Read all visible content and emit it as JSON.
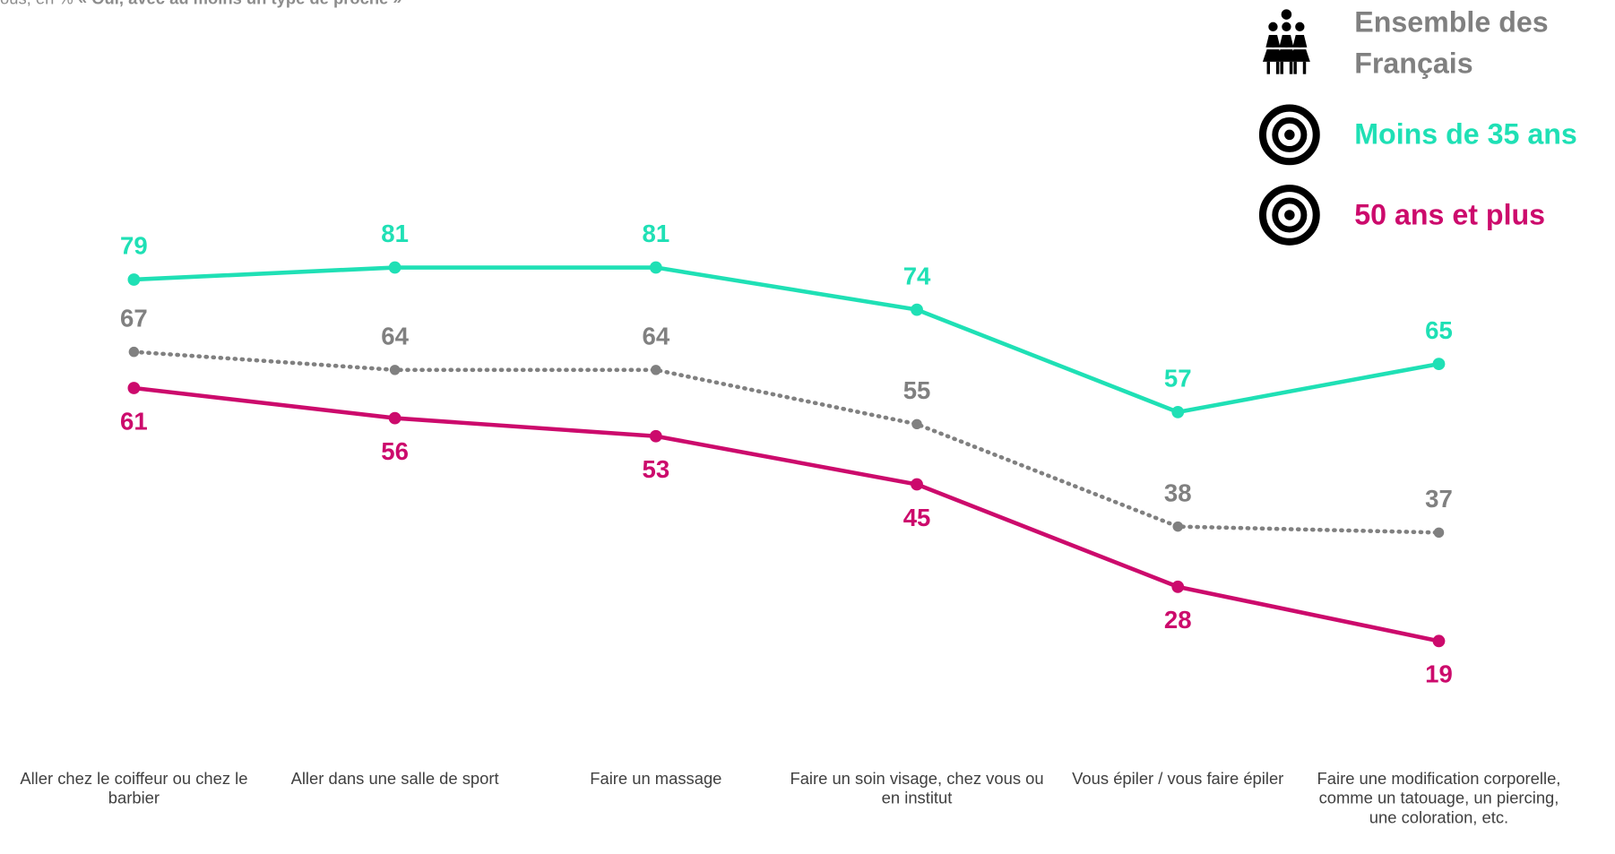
{
  "chart_data": {
    "type": "line",
    "subtitle": "ous, en %",
    "subtitle_emphasis": "« Oui, avec au moins un type de proche »",
    "categories": [
      "Aller chez le coiffeur ou chez le barbier",
      "Aller dans une salle de sport",
      "Faire un massage",
      "Faire un soin visage, chez vous ou en institut",
      "Vous épiler / vous faire épiler",
      "Faire une modification corporelle, comme un tatouage, un piercing, une coloration, etc."
    ],
    "series": [
      {
        "name": "Ensemble des Français",
        "color": "#808080",
        "dotted": true,
        "values": [
          67,
          64,
          64,
          55,
          38,
          37
        ]
      },
      {
        "name": "Moins de 35 ans",
        "color": "#1fe0b5",
        "values": [
          79,
          81,
          81,
          74,
          57,
          65
        ]
      },
      {
        "name": "50 ans et plus",
        "color": "#cc0a6c",
        "values": [
          61,
          56,
          53,
          45,
          28,
          19
        ]
      }
    ]
  }
}
